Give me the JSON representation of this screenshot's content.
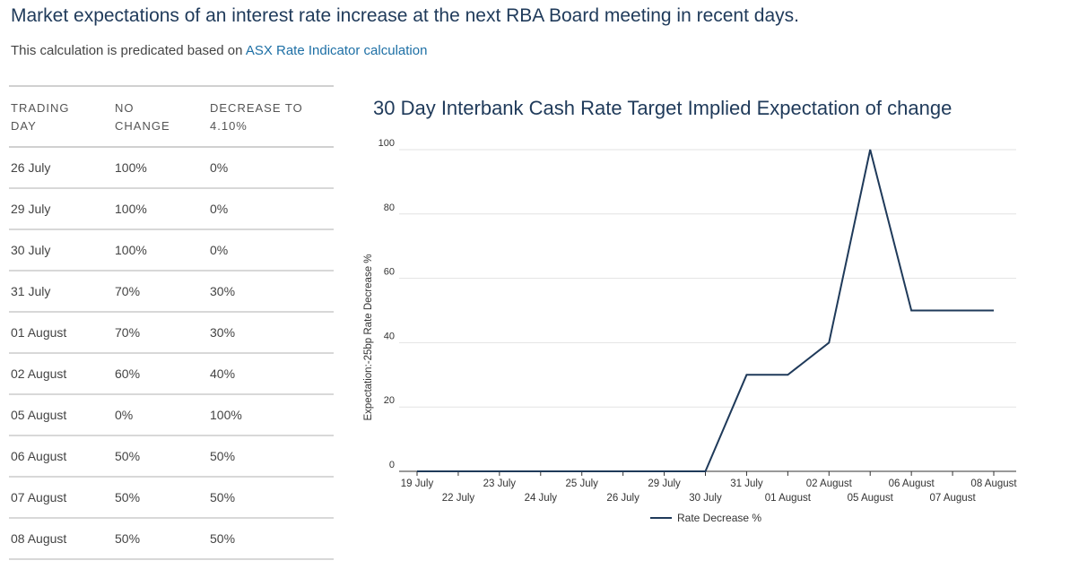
{
  "header": {
    "title": "Market expectations of an interest rate increase at the next RBA Board meeting in recent days.",
    "subtitle_prefix": "This calculation is predicated based on ",
    "subtitle_link": "ASX Rate Indicator calculation"
  },
  "table": {
    "headers": [
      [
        "TRADING",
        "DAY"
      ],
      [
        "NO",
        "CHANGE"
      ],
      [
        "DECREASE TO",
        "4.10%"
      ]
    ],
    "rows": [
      [
        "26 July",
        "100%",
        "0%"
      ],
      [
        "29 July",
        "100%",
        "0%"
      ],
      [
        "30 July",
        "100%",
        "0%"
      ],
      [
        "31 July",
        "70%",
        "30%"
      ],
      [
        "01 August",
        "70%",
        "30%"
      ],
      [
        "02 August",
        "60%",
        "40%"
      ],
      [
        "05 August",
        "0%",
        "100%"
      ],
      [
        "06 August",
        "50%",
        "50%"
      ],
      [
        "07 August",
        "50%",
        "50%"
      ],
      [
        "08 August",
        "50%",
        "50%"
      ]
    ]
  },
  "colors": {
    "line": "#1f3a5a",
    "grid": "#e3e3e3",
    "axis": "#333333",
    "link": "#1d6fa5"
  },
  "chart_data": {
    "type": "line",
    "title": "30 Day Interbank Cash Rate Target Implied Expectation of change",
    "xlabel": "",
    "ylabel": "Expectation:-25bp Rate Decrease %",
    "categories": [
      "19 July",
      "22 July",
      "23 July",
      "24 July",
      "25 July",
      "26 July",
      "29 July",
      "30 July",
      "31 July",
      "01 August",
      "02 August",
      "05 August",
      "06 August",
      "07 August",
      "08 August"
    ],
    "series": [
      {
        "name": "Rate Decrease %",
        "values": [
          0,
          0,
          0,
          0,
          0,
          0,
          0,
          0,
          30,
          30,
          40,
          100,
          50,
          50,
          50
        ]
      }
    ],
    "yticks": [
      0,
      20,
      40,
      60,
      80,
      100
    ],
    "ylim": [
      0,
      100
    ],
    "grid": true,
    "legend_position": "bottom"
  }
}
